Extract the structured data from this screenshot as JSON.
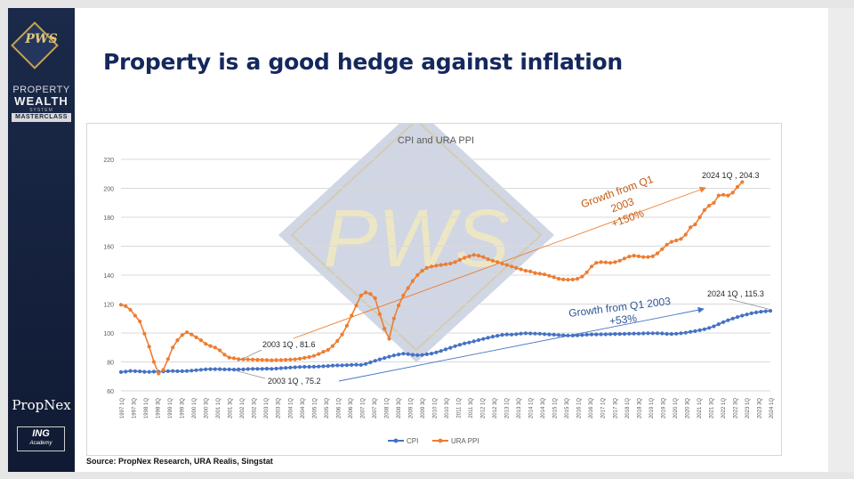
{
  "slide": {
    "title": "Property is a good hedge against inflation",
    "source": "Source: PropNex Research, URA Realis, Singstat"
  },
  "sidebar": {
    "logo_monogram": "PWS",
    "brand_line1": "PROPERTY",
    "brand_line2": "WEALTH",
    "brand_line3": "SYSTEM",
    "brand_tag": "MASTERCLASS",
    "partner": "PropNex",
    "academy_mark": "ING",
    "academy_sub": "Academy"
  },
  "watermark": {
    "text": "PWS"
  },
  "colors": {
    "cpi": "#4472c4",
    "ppi": "#ed7d31",
    "brand_navy": "#14213d",
    "title": "#14285c",
    "gold": "#c8a24a"
  },
  "chart_data": {
    "type": "line",
    "title": "CPI and URA PPI",
    "ylim": [
      60,
      220
    ],
    "yticks": [
      60,
      80,
      100,
      120,
      140,
      160,
      180,
      200,
      220
    ],
    "x_start": "1997 1Q",
    "x_end": "2024 1Q",
    "x_tick_labels": [
      "1997 1Q",
      "1997 3Q",
      "1998 1Q",
      "1998 3Q",
      "1999 1Q",
      "1999 3Q",
      "2000 1Q",
      "2000 3Q",
      "2001 1Q",
      "2001 3Q",
      "2002 1Q",
      "2002 3Q",
      "2003 1Q",
      "2003 3Q",
      "2004 1Q",
      "2004 3Q",
      "2005 1Q",
      "2005 3Q",
      "2006 1Q",
      "2006 3Q",
      "2007 1Q",
      "2007 3Q",
      "2008 1Q",
      "2008 3Q",
      "2009 1Q",
      "2009 3Q",
      "2010 1Q",
      "2010 3Q",
      "2011 1Q",
      "2011 3Q",
      "2012 1Q",
      "2012 3Q",
      "2013 1Q",
      "2013 3Q",
      "2014 1Q",
      "2014 3Q",
      "2015 1Q",
      "2015 3Q",
      "2016 1Q",
      "2016 3Q",
      "2017 1Q",
      "2017 3Q",
      "2018 1Q",
      "2018 3Q",
      "2019 1Q",
      "2019 3Q",
      "2020 1Q",
      "2020 3Q",
      "2021 1Q",
      "2021 3Q",
      "2022 1Q",
      "2022 3Q",
      "2023 1Q",
      "2023 3Q",
      "2024 1Q"
    ],
    "series": [
      {
        "name": "CPI",
        "color": "#4472c4",
        "values": [
          73,
          73.3,
          73.8,
          73.6,
          73.5,
          73.2,
          73.1,
          73.3,
          73.2,
          73.4,
          73.6,
          73.7,
          73.6,
          73.6,
          73.7,
          74,
          74.3,
          74.6,
          74.9,
          75,
          75,
          75,
          74.8,
          74.8,
          74.7,
          74.8,
          74.8,
          75.1,
          75.2,
          75.2,
          75.2,
          75.3,
          75.2,
          75.4,
          75.7,
          75.9,
          76.1,
          76.3,
          76.5,
          76.6,
          76.6,
          76.7,
          76.8,
          77,
          77.2,
          77.5,
          77.6,
          77.6,
          77.8,
          77.9,
          78.1,
          77.9,
          78.6,
          79.7,
          80.8,
          81.8,
          82.7,
          83.6,
          84.5,
          85.2,
          85.7,
          85.4,
          84.9,
          84.7,
          84.8,
          85.3,
          85.8,
          86.6,
          87.6,
          88.7,
          89.8,
          90.9,
          91.9,
          92.8,
          93.4,
          94.2,
          95.1,
          95.9,
          96.7,
          97.5,
          98.1,
          98.7,
          99,
          98.9,
          99.2,
          99.6,
          99.8,
          99.7,
          99.6,
          99.5,
          99.2,
          99,
          98.8,
          98.6,
          98.4,
          98.3,
          98.2,
          98.4,
          98.6,
          98.8,
          99,
          99,
          99.1,
          99.1,
          99.2,
          99.3,
          99.3,
          99.4,
          99.5,
          99.6,
          99.6,
          99.7,
          99.8,
          99.8,
          99.8,
          99.7,
          99.4,
          99.3,
          99.5,
          99.8,
          100.2,
          100.8,
          101.3,
          101.9,
          102.6,
          103.5,
          104.6,
          106.1,
          107.5,
          108.8,
          110,
          111,
          112,
          112.8,
          113.6,
          114.2,
          114.7,
          115,
          115.3
        ]
      },
      {
        "name": "URA PPI",
        "color": "#ed7d31",
        "values": [
          119.5,
          118.5,
          116,
          112,
          108,
          99.5,
          90.5,
          80,
          72,
          74.5,
          82,
          90,
          95,
          98.5,
          100.5,
          99,
          97,
          95,
          92.5,
          91,
          90,
          88,
          85,
          83,
          82.5,
          82,
          81.8,
          81.7,
          81.6,
          81.5,
          81.4,
          81.3,
          81.2,
          81.3,
          81.3,
          81.5,
          81.6,
          81.8,
          82.2,
          82.8,
          83.4,
          84.2,
          85.5,
          87,
          88.3,
          91,
          94.5,
          99,
          105,
          112,
          119,
          126,
          128,
          127,
          124,
          113,
          103,
          96,
          110,
          119,
          126,
          131,
          136,
          140,
          143,
          145,
          146,
          146.5,
          147,
          147.5,
          148,
          149,
          150.5,
          152,
          153,
          154,
          153.5,
          152.5,
          151,
          150,
          149,
          148,
          147,
          146,
          145,
          144,
          143,
          142.5,
          141.5,
          141,
          140.5,
          139.5,
          138.5,
          137.5,
          137,
          136.8,
          136.9,
          137.5,
          139,
          142,
          146,
          148.5,
          149,
          148.8,
          148.5,
          149,
          150,
          151.5,
          152.8,
          153.5,
          153,
          152.5,
          152.5,
          153,
          155,
          158,
          161,
          163,
          164,
          165,
          168,
          173,
          175,
          180,
          185,
          188,
          190,
          195,
          195.5,
          195,
          197,
          201,
          204.3
        ]
      }
    ],
    "annotations": [
      {
        "text": "2003 1Q , 81.6",
        "series": "URA PPI",
        "x": "2003 1Q",
        "y": 81.6
      },
      {
        "text": "2003 1Q , 75.2",
        "series": "CPI",
        "x": "2003 1Q",
        "y": 75.2
      },
      {
        "text": "2024 1Q , 204.3",
        "series": "URA PPI",
        "x": "2024 1Q",
        "y": 204.3
      },
      {
        "text": "2024 1Q , 115.3",
        "series": "CPI",
        "x": "2024 1Q",
        "y": 115.3
      },
      {
        "text_lines": [
          "Growth from Q1",
          "2003",
          "+150%"
        ],
        "series": "URA PPI"
      },
      {
        "text_lines": [
          "Growth from Q1 2003",
          "+53%"
        ],
        "series": "CPI"
      }
    ],
    "legend": {
      "position": "bottom",
      "entries": [
        "CPI",
        "URA PPI"
      ]
    },
    "grid": "horizontal"
  }
}
